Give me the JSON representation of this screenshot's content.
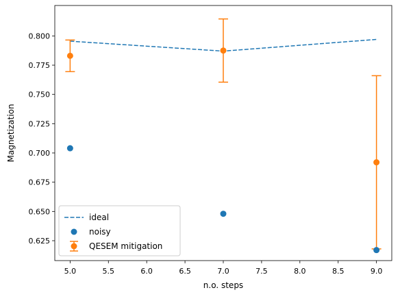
{
  "chart_data": {
    "type": "scatter",
    "title": "",
    "xlabel": "n.o. steps",
    "ylabel": "Magnetization",
    "xlim": [
      4.8,
      9.2
    ],
    "ylim": [
      0.608,
      0.826
    ],
    "grid": false,
    "legend_position": "lower-left",
    "x_ticks": [
      5.0,
      5.5,
      6.0,
      6.5,
      7.0,
      7.5,
      8.0,
      8.5,
      9.0
    ],
    "x_tick_labels": [
      "5.0",
      "5.5",
      "6.0",
      "6.5",
      "7.0",
      "7.5",
      "8.0",
      "8.5",
      "9.0"
    ],
    "y_ticks": [
      0.625,
      0.65,
      0.675,
      0.7,
      0.725,
      0.75,
      0.775,
      0.8
    ],
    "y_tick_labels": [
      "0.625",
      "0.650",
      "0.675",
      "0.700",
      "0.725",
      "0.750",
      "0.775",
      "0.800"
    ],
    "series": [
      {
        "name": "ideal",
        "kind": "line-dashed",
        "color": "#1f77b4",
        "x": [
          5,
          7,
          9
        ],
        "y": [
          0.7955,
          0.787,
          0.797
        ]
      },
      {
        "name": "noisy",
        "kind": "scatter",
        "color": "#1f77b4",
        "x": [
          5,
          7,
          9
        ],
        "y": [
          0.704,
          0.648,
          0.617
        ]
      },
      {
        "name": "QESEM mitigation",
        "kind": "errorbar",
        "color": "#ff7f0e",
        "x": [
          5,
          7,
          9
        ],
        "y": [
          0.783,
          0.7875,
          0.692
        ],
        "err_low": [
          0.7695,
          0.7605,
          0.618
        ],
        "err_high": [
          0.7965,
          0.8145,
          0.766
        ]
      }
    ]
  }
}
